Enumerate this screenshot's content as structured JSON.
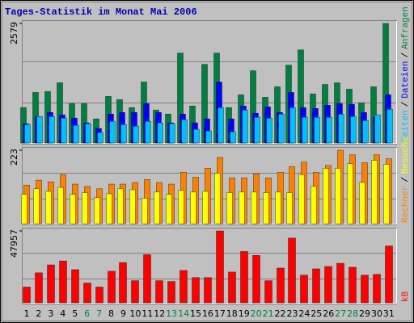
{
  "chart_data": [
    {
      "type": "bar",
      "title": "Tages-Statistik im Monat Mai 2006",
      "ylim": [
        0,
        2579
      ],
      "yticks": [
        2579
      ],
      "legend_separator": "/",
      "series": [
        {
          "name": "Anfragen",
          "color": "#008040",
          "values": [
            762,
            1090,
            1108,
            1298,
            848,
            848,
            519,
            1004,
            935,
            762,
            1315,
            710,
            623,
            1939,
            796,
            1696,
            1939,
            762,
            1039,
            1558,
            987,
            1212,
            1679,
            2008,
            1056,
            1263,
            1298,
            1160,
            865,
            1212,
            2579
          ]
        },
        {
          "name": "Dateien",
          "color": "#0000ff",
          "values": [
            415,
            571,
            658,
            606,
            537,
            433,
            312,
            623,
            658,
            658,
            848,
            658,
            433,
            623,
            433,
            519,
            1315,
            519,
            796,
            640,
            779,
            658,
            1090,
            762,
            744,
            813,
            848,
            831,
            658,
            554,
            1039
          ]
        },
        {
          "name": "Seiten",
          "color": "#00c0ff",
          "values": [
            398,
            571,
            571,
            537,
            380,
            415,
            225,
            467,
            398,
            363,
            467,
            433,
            415,
            501,
            294,
            259,
            762,
            242,
            710,
            554,
            537,
            623,
            762,
            554,
            554,
            554,
            623,
            571,
            484,
            606,
            727
          ]
        }
      ]
    },
    {
      "type": "bar",
      "ylim": [
        0,
        223
      ],
      "yticks": [
        223
      ],
      "legend_separator": "/",
      "series": [
        {
          "name": "Besuche",
          "color": "#ffff00",
          "values": [
            89,
            106,
            98,
            110,
            89,
            94,
            79,
            91,
            106,
            103,
            77,
            96,
            89,
            101,
            96,
            98,
            153,
            94,
            96,
            96,
            94,
            96,
            94,
            149,
            113,
            168,
            168,
            182,
            125,
            192,
            180
          ]
        },
        {
          "name": "Rechner",
          "color": "#ff8000",
          "values": [
            117,
            132,
            127,
            149,
            120,
            113,
            106,
            120,
            120,
            125,
            134,
            125,
            120,
            156,
            141,
            168,
            201,
            139,
            139,
            151,
            139,
            156,
            173,
            187,
            156,
            177,
            223,
            209,
            185,
            209,
            197
          ]
        }
      ]
    },
    {
      "type": "bar",
      "ylim": [
        0,
        47957
      ],
      "yticks": [
        47957
      ],
      "categories": [
        "1",
        "2",
        "3",
        "4",
        "5",
        "6",
        "7",
        "8",
        "9",
        "10",
        "11",
        "12",
        "13",
        "14",
        "15",
        "16",
        "17",
        "18",
        "19",
        "20",
        "21",
        "22",
        "23",
        "24",
        "25",
        "26",
        "27",
        "28",
        "29",
        "30",
        "31"
      ],
      "category_colors": [
        "#000000",
        "#000000",
        "#000000",
        "#000000",
        "#000000",
        "#008040",
        "#008040",
        "#000000",
        "#000000",
        "#000000",
        "#000000",
        "#000000",
        "#008040",
        "#008040",
        "#000000",
        "#000000",
        "#000000",
        "#000000",
        "#000000",
        "#008040",
        "#008040",
        "#000000",
        "#000000",
        "#000000",
        "#000000",
        "#000000",
        "#008040",
        "#008040",
        "#000000",
        "#000000",
        "#000000"
      ],
      "series": [
        {
          "name": "kB",
          "color": "#ff0000",
          "values": [
            10540,
            20026,
            25296,
            27931,
            22134,
            13175,
            10540,
            21080,
            26877,
            14756,
            32147,
            14756,
            14229,
            21607,
            16864,
            16864,
            47957,
            20553,
            34255,
            31620,
            14756,
            23188,
            43214,
            18445,
            22661,
            24242,
            26350,
            23715,
            18445,
            18972,
            37944
          ]
        }
      ]
    }
  ]
}
